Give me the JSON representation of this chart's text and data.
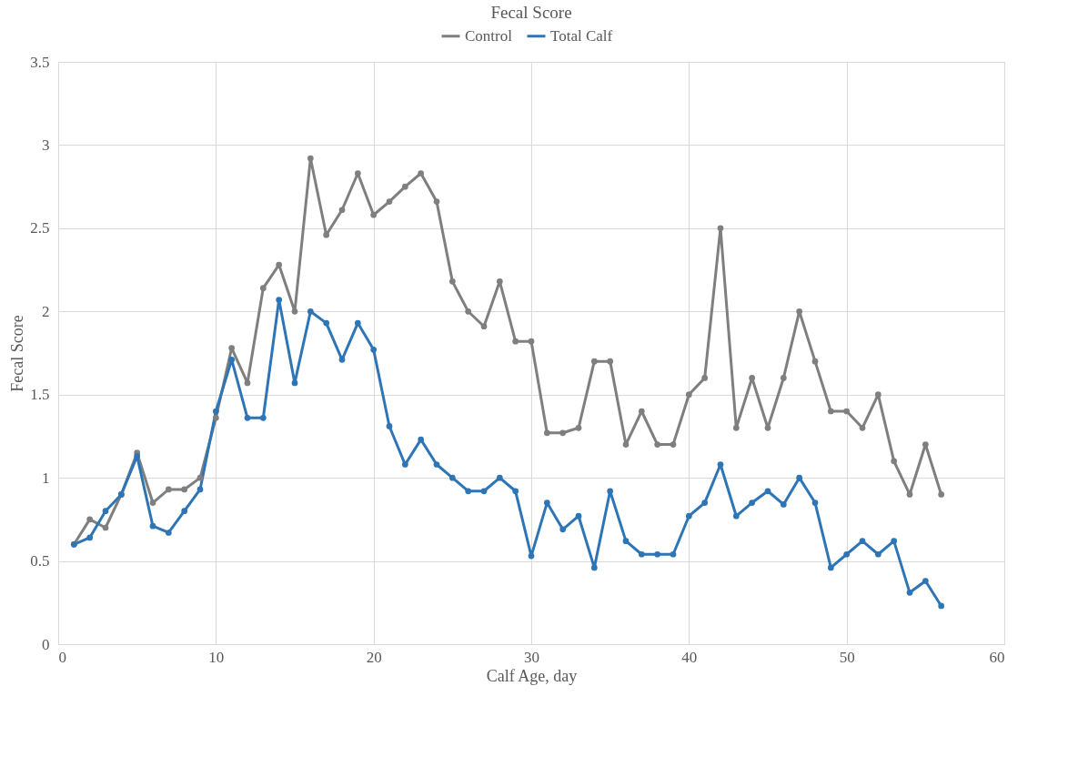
{
  "chart_data": {
    "type": "line",
    "title": "Fecal Score",
    "xlabel": "Calf Age, day",
    "ylabel": "Fecal Score",
    "x": [
      1,
      2,
      3,
      4,
      5,
      6,
      7,
      8,
      9,
      10,
      11,
      12,
      13,
      14,
      15,
      16,
      17,
      18,
      19,
      20,
      21,
      22,
      23,
      24,
      25,
      26,
      27,
      28,
      29,
      30,
      31,
      32,
      33,
      34,
      35,
      36,
      37,
      38,
      39,
      40,
      41,
      42,
      43,
      44,
      45,
      46,
      47,
      48,
      49,
      50,
      51,
      52,
      53,
      54,
      55,
      56
    ],
    "series": [
      {
        "name": "Control",
        "color": "#7f7f7f",
        "values": [
          0.6,
          0.75,
          0.7,
          0.9,
          1.15,
          0.85,
          0.93,
          0.93,
          1.0,
          1.36,
          1.78,
          1.57,
          2.14,
          2.28,
          2.0,
          2.92,
          2.46,
          2.61,
          2.83,
          2.58,
          2.66,
          2.75,
          2.83,
          2.66,
          2.18,
          2.0,
          1.91,
          2.18,
          1.82,
          1.82,
          1.27,
          1.27,
          1.3,
          1.7,
          1.7,
          1.2,
          1.4,
          1.2,
          1.2,
          1.5,
          1.6,
          2.5,
          1.3,
          1.6,
          1.3,
          1.6,
          2.0,
          1.7,
          1.4,
          1.4,
          1.3,
          1.5,
          1.1,
          0.9,
          1.2,
          0.9
        ]
      },
      {
        "name": "Total Calf",
        "color": "#2e75b6",
        "values": [
          0.6,
          0.64,
          0.8,
          0.9,
          1.13,
          0.71,
          0.67,
          0.8,
          0.93,
          1.4,
          1.71,
          1.36,
          1.36,
          2.07,
          1.57,
          2.0,
          1.93,
          1.71,
          1.93,
          1.77,
          1.31,
          1.08,
          1.23,
          1.08,
          1.0,
          0.92,
          0.92,
          1.0,
          0.92,
          0.53,
          0.85,
          0.69,
          0.77,
          0.46,
          0.92,
          0.62,
          0.54,
          0.54,
          0.54,
          0.77,
          0.85,
          1.08,
          0.77,
          0.85,
          0.92,
          0.84,
          1.0,
          0.85,
          0.46,
          0.54,
          0.62,
          0.54,
          0.62,
          0.31,
          0.38,
          0.23
        ]
      }
    ],
    "xlim": [
      0,
      60
    ],
    "xticks": [
      0,
      10,
      20,
      30,
      40,
      50,
      60
    ],
    "ylim": [
      0,
      3.5
    ],
    "yticks": [
      0,
      0.5,
      1,
      1.5,
      2,
      2.5,
      3,
      3.5
    ],
    "grid": true,
    "legend": "top",
    "marker": "circle",
    "line_style": "solid"
  }
}
